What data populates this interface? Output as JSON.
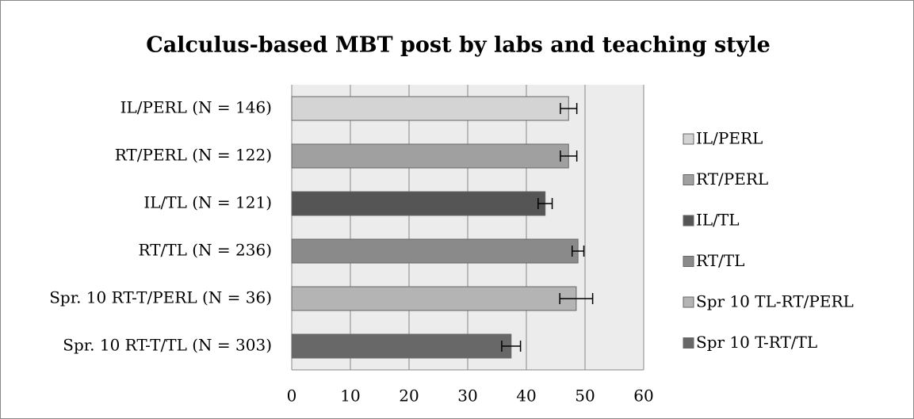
{
  "chart_data": {
    "type": "bar",
    "orientation": "horizontal",
    "title": "Calculus-based MBT post by labs and teaching style",
    "categories": [
      "IL/PERL (N = 146)",
      "RT/PERL (N = 122)",
      "IL/TL (N = 121)",
      "RT/TL (N = 236)",
      "Spr. 10 RT-T/PERL (N = 36)",
      "Spr. 10 RT-T/TL (N = 303)"
    ],
    "series": [
      {
        "name": "IL/PERL",
        "color": "#d4d4d4",
        "values": [
          47.2,
          null,
          null,
          null,
          null,
          null
        ],
        "errors": [
          1.4,
          null,
          null,
          null,
          null,
          null
        ]
      },
      {
        "name": "RT/PERL",
        "color": "#a0a0a0",
        "values": [
          null,
          47.2,
          null,
          null,
          null,
          null
        ],
        "errors": [
          null,
          1.4,
          null,
          null,
          null,
          null
        ]
      },
      {
        "name": "IL/TL",
        "color": "#555555",
        "values": [
          null,
          null,
          43.2,
          null,
          null,
          null
        ],
        "errors": [
          null,
          null,
          1.2,
          null,
          null,
          null
        ]
      },
      {
        "name": "RT/TL",
        "color": "#8a8a8a",
        "values": [
          null,
          null,
          null,
          48.8,
          null,
          null
        ],
        "errors": [
          null,
          null,
          null,
          1.0,
          null,
          null
        ]
      },
      {
        "name": "Spr 10 TL-RT/PERL",
        "color": "#b4b4b4",
        "values": [
          null,
          null,
          null,
          null,
          48.5,
          null
        ],
        "errors": [
          null,
          null,
          null,
          null,
          2.8,
          null
        ]
      },
      {
        "name": "Spr 10 T-RT/TL",
        "color": "#686868",
        "values": [
          null,
          null,
          null,
          null,
          null,
          37.4
        ],
        "errors": [
          null,
          null,
          null,
          null,
          null,
          1.6
        ]
      }
    ],
    "xlim": [
      0,
      60
    ],
    "xticks": [
      0,
      10,
      20,
      30,
      40,
      50,
      60
    ],
    "grid": true,
    "legend": "right"
  }
}
